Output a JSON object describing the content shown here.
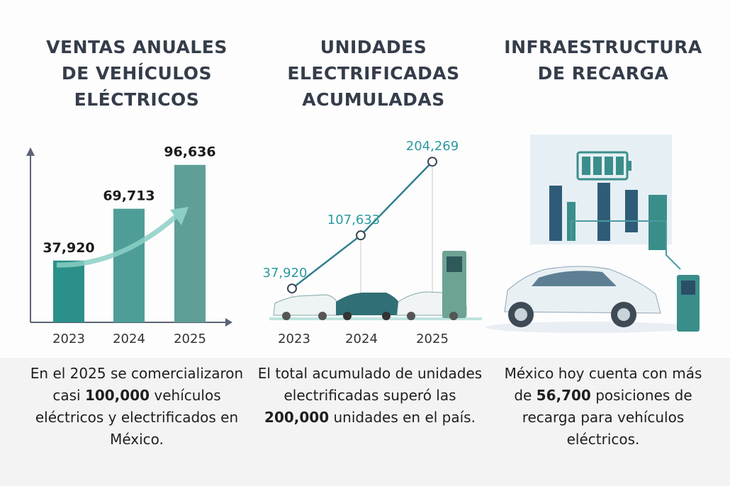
{
  "panels": [
    {
      "title_lines": [
        "VENTAS ANUALES",
        "DE VEHÍCULOS",
        "ELÉCTRICOS"
      ],
      "desc": {
        "pre": "En el 2025 se comercializaron casi ",
        "bold": "100,000",
        "post": " vehículos eléctricos y electrificados en México."
      }
    },
    {
      "title_lines": [
        "UNIDADES",
        "ELECTRIFICADAS",
        "ACUMULADAS"
      ],
      "desc": {
        "pre": "El total acumulado de unidades electrificadas superó las ",
        "bold": "200,000",
        "post": " unidades en el país."
      }
    },
    {
      "title_lines": [
        "INFRAESTRUCTURA",
        "DE RECARGA"
      ],
      "desc": {
        "pre": "México hoy cuenta con más de ",
        "bold": "56,700",
        "post": " posiciones de recarga para vehículos eléctricos."
      }
    }
  ],
  "colors": {
    "teal": "#2a9089",
    "teal_light": "#5f9f98",
    "axis": "#5c6374",
    "label_teal": "#2a9aa0"
  },
  "chart_data": [
    {
      "type": "bar",
      "categories": [
        "2023",
        "2024",
        "2025"
      ],
      "values": [
        37920,
        69713,
        96636
      ],
      "labels": [
        "37,920",
        "69,713",
        "96,636"
      ],
      "ylim": [
        0,
        100000
      ],
      "grid": false
    },
    {
      "type": "line",
      "categories": [
        "2023",
        "2024",
        "2025"
      ],
      "values": [
        37920,
        107633,
        204269
      ],
      "labels": [
        "37,920",
        "107,633",
        "204,269"
      ],
      "ylim": [
        0,
        210000
      ],
      "grid": false
    }
  ]
}
